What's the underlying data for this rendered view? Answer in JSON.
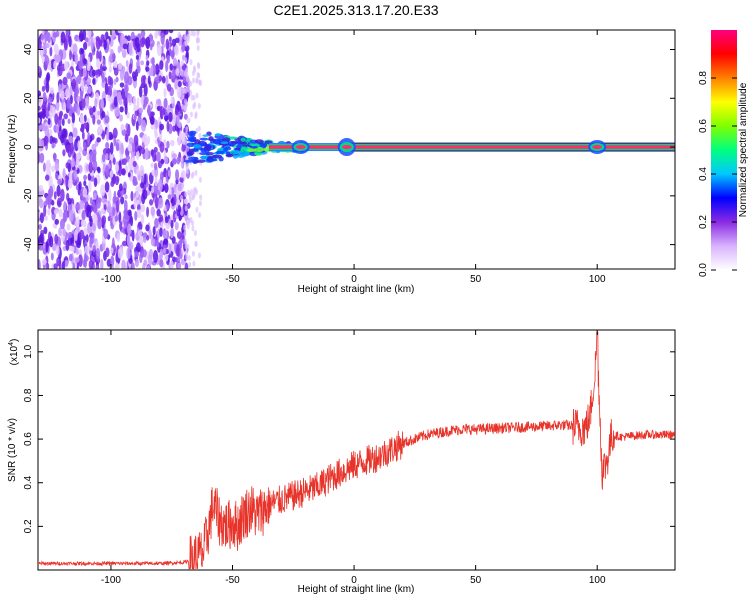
{
  "title": "C2E1.2025.313.17.20.E33",
  "chart_data": [
    {
      "type": "heatmap",
      "title": "C2E1.2025.313.17.20.E33",
      "xlabel": "Height of straight line (km)",
      "ylabel": "Frequency (Hz)",
      "xlim": [
        -130,
        132
      ],
      "ylim": [
        -50,
        48
      ],
      "x_ticks": [
        -100,
        -50,
        0,
        50,
        100
      ],
      "y_ticks": [
        -40,
        -20,
        0,
        20,
        40
      ],
      "colorbar": {
        "label": "Normalized spectral amplitude",
        "range": [
          0,
          1
        ],
        "ticks": [
          0.0,
          0.2,
          0.4,
          0.6,
          0.8
        ],
        "colors": [
          "#ffffff",
          "#d9b3ff",
          "#8a2be2",
          "#0000ff",
          "#00c8ff",
          "#00ff80",
          "#80ff00",
          "#ffff00",
          "#ff8000",
          "#ff0000",
          "#ff0080"
        ]
      },
      "regions": [
        {
          "name": "broadband noise",
          "x_range": [
            -130,
            -68
          ],
          "freq_range": [
            -50,
            48
          ],
          "amplitude": 0.1
        },
        {
          "name": "transition",
          "x_range": [
            -68,
            -20
          ],
          "freq_range": [
            -8,
            8
          ],
          "amplitude": 0.3
        },
        {
          "name": "carrier line",
          "x_range": [
            -20,
            132
          ],
          "freq": 0,
          "amplitude": 0.95
        }
      ]
    },
    {
      "type": "line",
      "xlabel": "Height of straight line (km)",
      "ylabel": "SNR (10 * v/v)",
      "y_multiplier": "(x10",
      "y_multiplier_exp": "4",
      "y_multiplier_close": ")",
      "xlim": [
        -130,
        132
      ],
      "ylim": [
        0,
        1.1
      ],
      "x_ticks": [
        -100,
        -50,
        0,
        50,
        100
      ],
      "y_ticks": [
        0.2,
        0.4,
        0.6,
        0.8,
        1.0
      ],
      "color": "#e8332a",
      "series": [
        {
          "x": [
            -130,
            -120,
            -110,
            -100,
            -90,
            -80,
            -70,
            -66,
            -62,
            -60,
            -58,
            -55,
            -52,
            -50,
            -48,
            -45,
            -42,
            -40,
            -38,
            -35,
            -30,
            -25,
            -20,
            -15,
            -10,
            -5,
            0,
            5,
            10,
            15,
            20,
            25,
            30,
            35,
            40,
            45,
            50,
            60,
            70,
            80,
            85,
            90,
            95,
            97,
            99,
            100,
            101,
            102,
            104,
            106,
            110,
            120,
            132
          ],
          "y": [
            0.03,
            0.03,
            0.03,
            0.03,
            0.03,
            0.03,
            0.035,
            0.05,
            0.08,
            0.18,
            0.3,
            0.22,
            0.2,
            0.22,
            0.2,
            0.26,
            0.28,
            0.25,
            0.27,
            0.3,
            0.32,
            0.34,
            0.36,
            0.38,
            0.42,
            0.45,
            0.48,
            0.5,
            0.52,
            0.55,
            0.58,
            0.6,
            0.62,
            0.63,
            0.64,
            0.645,
            0.645,
            0.65,
            0.655,
            0.66,
            0.665,
            0.66,
            0.65,
            0.7,
            0.9,
            1.05,
            0.75,
            0.45,
            0.5,
            0.62,
            0.61,
            0.62,
            0.62
          ]
        }
      ],
      "annotation": {
        "x": 100,
        "y": 1.09,
        "type": "spike"
      }
    }
  ]
}
